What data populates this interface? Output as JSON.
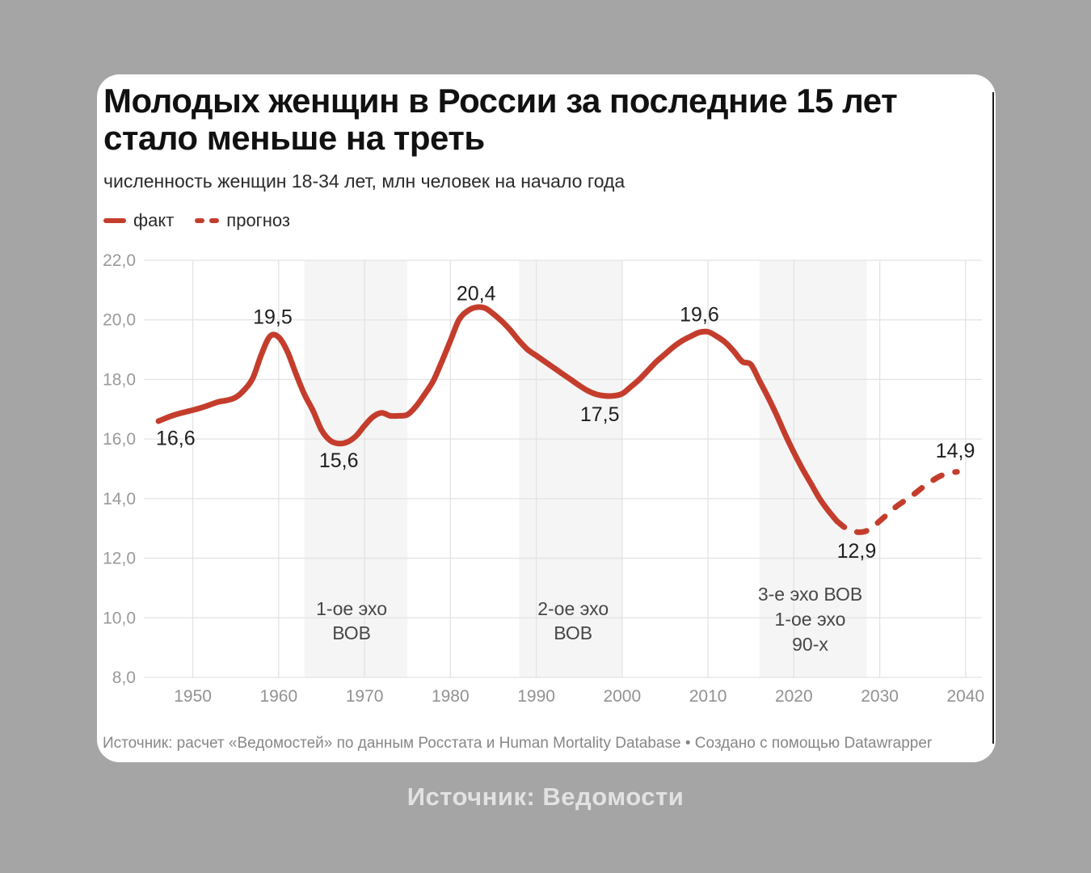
{
  "page": {
    "background": "#a5a5a5",
    "caption": "Источник: Ведомости"
  },
  "chart_data": {
    "type": "line",
    "title": "Молодых женщин в России за последние 15 лет стало меньше на треть",
    "subtitle": "численность женщин 18-34 лет, млн человек на начало года",
    "source_note": "Источник: расчет «Ведомостей» по данным Росстата и Human Mortality Database • Создано с помощью Datawrapper",
    "legend": [
      {
        "label": "факт",
        "style": "solid"
      },
      {
        "label": "прогноз",
        "style": "dashed"
      }
    ],
    "colors": {
      "line": "#c43d2c",
      "grid": "#e3e3e3",
      "band": "#f5f5f5"
    },
    "xlim": [
      1944.3,
      2041.9
    ],
    "ylim": [
      8,
      22
    ],
    "grid": true,
    "x_ticks": [
      1950,
      1960,
      1970,
      1980,
      1990,
      2000,
      2010,
      2020,
      2030,
      2040
    ],
    "y_ticks": [
      {
        "value": 8,
        "label": "8,0"
      },
      {
        "value": 10,
        "label": "10,0"
      },
      {
        "value": 12,
        "label": "12,0"
      },
      {
        "value": 14,
        "label": "14,0"
      },
      {
        "value": 16,
        "label": "16,0"
      },
      {
        "value": 18,
        "label": "18,0"
      },
      {
        "value": 20,
        "label": "20,0"
      },
      {
        "value": 22,
        "label": "22,0"
      }
    ],
    "bands": [
      {
        "from": 1963,
        "to": 1975
      },
      {
        "from": 1988,
        "to": 2000
      },
      {
        "from": 2016,
        "to": 2028.5
      }
    ],
    "annotations": [
      {
        "x": 1968.5,
        "lines": [
          "1-ое эхо",
          "ВОВ"
        ],
        "line_y": [
          10.3,
          9.49
        ]
      },
      {
        "x": 1994.3,
        "lines": [
          "2-ое эхо",
          "ВОВ"
        ],
        "line_y": [
          10.3,
          9.49
        ]
      },
      {
        "x": 2021.9,
        "lines": [
          "3-е эхо ВОВ",
          "1-ое эхо",
          "90-х"
        ],
        "line_y": [
          10.79,
          9.95,
          9.11
        ]
      }
    ],
    "point_labels": [
      {
        "text": "16,6",
        "x": 1948.0,
        "y": 16.05
      },
      {
        "text": "19,5",
        "x": 1959.3,
        "y": 20.12
      },
      {
        "text": "15,6",
        "x": 1967.0,
        "y": 15.3
      },
      {
        "text": "20,4",
        "x": 1983.0,
        "y": 20.9
      },
      {
        "text": "17,5",
        "x": 1997.4,
        "y": 16.85
      },
      {
        "text": "19,6",
        "x": 2009.0,
        "y": 20.2
      },
      {
        "text": "12,9",
        "x": 2027.3,
        "y": 12.26
      },
      {
        "text": "14,9",
        "x": 2038.8,
        "y": 15.62
      }
    ],
    "series": [
      {
        "name": "факт",
        "style": "solid",
        "points": [
          [
            1946,
            16.6
          ],
          [
            1947,
            16.72
          ],
          [
            1948,
            16.82
          ],
          [
            1949,
            16.9
          ],
          [
            1950,
            16.97
          ],
          [
            1951,
            17.05
          ],
          [
            1952,
            17.15
          ],
          [
            1953,
            17.25
          ],
          [
            1954,
            17.3
          ],
          [
            1955,
            17.4
          ],
          [
            1956,
            17.65
          ],
          [
            1957,
            18.05
          ],
          [
            1958,
            18.85
          ],
          [
            1959,
            19.45
          ],
          [
            1960,
            19.42
          ],
          [
            1961,
            18.95
          ],
          [
            1962,
            18.2
          ],
          [
            1963,
            17.5
          ],
          [
            1964,
            16.95
          ],
          [
            1965,
            16.3
          ],
          [
            1966,
            15.95
          ],
          [
            1967,
            15.85
          ],
          [
            1968,
            15.9
          ],
          [
            1969,
            16.1
          ],
          [
            1970,
            16.45
          ],
          [
            1971,
            16.75
          ],
          [
            1972,
            16.88
          ],
          [
            1973,
            16.78
          ],
          [
            1974,
            16.78
          ],
          [
            1975,
            16.82
          ],
          [
            1976,
            17.1
          ],
          [
            1977,
            17.5
          ],
          [
            1978,
            17.95
          ],
          [
            1979,
            18.6
          ],
          [
            1980,
            19.3
          ],
          [
            1981,
            20.0
          ],
          [
            1982,
            20.3
          ],
          [
            1983,
            20.42
          ],
          [
            1984,
            20.4
          ],
          [
            1985,
            20.2
          ],
          [
            1986,
            19.95
          ],
          [
            1987,
            19.65
          ],
          [
            1988,
            19.3
          ],
          [
            1989,
            19.0
          ],
          [
            1990,
            18.8
          ],
          [
            1991,
            18.6
          ],
          [
            1992,
            18.4
          ],
          [
            1993,
            18.2
          ],
          [
            1994,
            18.0
          ],
          [
            1995,
            17.8
          ],
          [
            1996,
            17.62
          ],
          [
            1997,
            17.5
          ],
          [
            1998,
            17.45
          ],
          [
            1999,
            17.45
          ],
          [
            2000,
            17.52
          ],
          [
            2001,
            17.75
          ],
          [
            2002,
            18.0
          ],
          [
            2003,
            18.3
          ],
          [
            2004,
            18.6
          ],
          [
            2005,
            18.85
          ],
          [
            2006,
            19.1
          ],
          [
            2007,
            19.3
          ],
          [
            2008,
            19.45
          ],
          [
            2009,
            19.58
          ],
          [
            2010,
            19.6
          ],
          [
            2011,
            19.45
          ],
          [
            2012,
            19.25
          ],
          [
            2013,
            18.95
          ],
          [
            2014,
            18.6
          ],
          [
            2015,
            18.5
          ],
          [
            2016,
            17.95
          ],
          [
            2017,
            17.4
          ],
          [
            2018,
            16.8
          ],
          [
            2019,
            16.15
          ],
          [
            2020,
            15.55
          ],
          [
            2021,
            15.0
          ],
          [
            2022,
            14.5
          ],
          [
            2023,
            14.0
          ],
          [
            2024,
            13.6
          ],
          [
            2025,
            13.25
          ]
        ]
      },
      {
        "name": "прогноз",
        "style": "dashed",
        "points": [
          [
            2025,
            13.25
          ],
          [
            2026,
            13.02
          ],
          [
            2027,
            12.9
          ],
          [
            2028,
            12.88
          ],
          [
            2029,
            13.0
          ],
          [
            2030,
            13.25
          ],
          [
            2031,
            13.5
          ],
          [
            2032,
            13.75
          ],
          [
            2033,
            13.95
          ],
          [
            2034,
            14.15
          ],
          [
            2035,
            14.38
          ],
          [
            2036,
            14.58
          ],
          [
            2037,
            14.75
          ],
          [
            2038,
            14.86
          ],
          [
            2039,
            14.9
          ]
        ]
      }
    ]
  }
}
